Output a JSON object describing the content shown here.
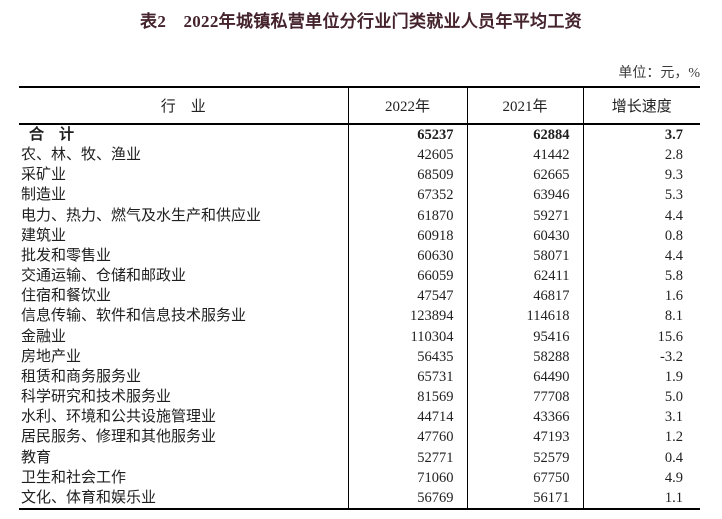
{
  "title": "表2　2022年城镇私营单位分行业门类就业人员年平均工资",
  "unit_note": "单位：元，%",
  "colors": {
    "title_text": "#44232d",
    "body_text": "#1f1f1f",
    "border": "#000000",
    "background": "#ffffff"
  },
  "table": {
    "columns": [
      "行　业",
      "2022年",
      "2021年",
      "增长速度"
    ],
    "rows": [
      {
        "industry": "合　计",
        "y2022": "65237",
        "y2021": "62884",
        "growth": "3.7",
        "bold": true
      },
      {
        "industry": "农、林、牧、渔业",
        "y2022": "42605",
        "y2021": "41442",
        "growth": "2.8",
        "bold": false
      },
      {
        "industry": "采矿业",
        "y2022": "68509",
        "y2021": "62665",
        "growth": "9.3",
        "bold": false
      },
      {
        "industry": "制造业",
        "y2022": "67352",
        "y2021": "63946",
        "growth": "5.3",
        "bold": false
      },
      {
        "industry": "电力、热力、燃气及水生产和供应业",
        "y2022": "61870",
        "y2021": "59271",
        "growth": "4.4",
        "bold": false
      },
      {
        "industry": "建筑业",
        "y2022": "60918",
        "y2021": "60430",
        "growth": "0.8",
        "bold": false
      },
      {
        "industry": "批发和零售业",
        "y2022": "60630",
        "y2021": "58071",
        "growth": "4.4",
        "bold": false
      },
      {
        "industry": "交通运输、仓储和邮政业",
        "y2022": "66059",
        "y2021": "62411",
        "growth": "5.8",
        "bold": false
      },
      {
        "industry": "住宿和餐饮业",
        "y2022": "47547",
        "y2021": "46817",
        "growth": "1.6",
        "bold": false
      },
      {
        "industry": "信息传输、软件和信息技术服务业",
        "y2022": "123894",
        "y2021": "114618",
        "growth": "8.1",
        "bold": false
      },
      {
        "industry": "金融业",
        "y2022": "110304",
        "y2021": "95416",
        "growth": "15.6",
        "bold": false
      },
      {
        "industry": "房地产业",
        "y2022": "56435",
        "y2021": "58288",
        "growth": "-3.2",
        "bold": false
      },
      {
        "industry": "租赁和商务服务业",
        "y2022": "65731",
        "y2021": "64490",
        "growth": "1.9",
        "bold": false
      },
      {
        "industry": "科学研究和技术服务业",
        "y2022": "81569",
        "y2021": "77708",
        "growth": "5.0",
        "bold": false
      },
      {
        "industry": "水利、环境和公共设施管理业",
        "y2022": "44714",
        "y2021": "43366",
        "growth": "3.1",
        "bold": false
      },
      {
        "industry": "居民服务、修理和其他服务业",
        "y2022": "47760",
        "y2021": "47193",
        "growth": "1.2",
        "bold": false
      },
      {
        "industry": "教育",
        "y2022": "52771",
        "y2021": "52579",
        "growth": "0.4",
        "bold": false
      },
      {
        "industry": "卫生和社会工作",
        "y2022": "71060",
        "y2021": "67750",
        "growth": "4.9",
        "bold": false
      },
      {
        "industry": "文化、体育和娱乐业",
        "y2022": "56769",
        "y2021": "56171",
        "growth": "1.1",
        "bold": false
      }
    ]
  }
}
